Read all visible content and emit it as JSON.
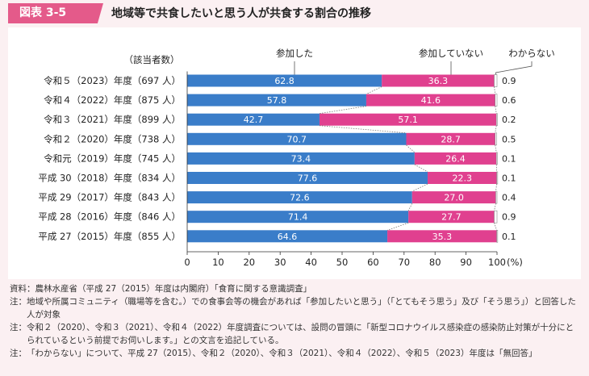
{
  "header": {
    "figure_label": "図表 3-5",
    "title": "地域等で共食したいと思う人が共食する割合の推移"
  },
  "chart_data": {
    "type": "bar",
    "stacked": true,
    "orientation": "horizontal",
    "title": "地域等で共食したいと思う人が共食する割合の推移",
    "count_header": "（該当者数）",
    "xlim": [
      0,
      100
    ],
    "ticks": [
      "0",
      "10",
      "20",
      "30",
      "40",
      "50",
      "60",
      "70",
      "80",
      "90",
      "100"
    ],
    "xunit": "(%)",
    "categories": [
      "令和５（2023）年度（697 人）",
      "令和４（2022）年度（875 人）",
      "令和３（2021）年度（899 人）",
      "令和２（2020）年度（738 人）",
      "令和元（2019）年度（745 人）",
      "平成 30（2018）年度（834 人）",
      "平成 29（2017）年度（843 人）",
      "平成 28（2016）年度（846 人）",
      "平成 27（2015）年度（855 人）"
    ],
    "series": [
      {
        "name": "参加した",
        "color": "#3a7dc9",
        "values": [
          62.8,
          57.8,
          42.7,
          70.7,
          73.4,
          77.6,
          72.6,
          71.4,
          64.6
        ]
      },
      {
        "name": "参加していない",
        "color": "#e0408f",
        "values": [
          36.3,
          41.6,
          57.1,
          28.7,
          26.4,
          22.3,
          27.0,
          27.7,
          35.3
        ]
      },
      {
        "name": "わからない",
        "color": "#ffffff",
        "values": [
          0.9,
          0.6,
          0.2,
          0.5,
          0.1,
          0.1,
          0.4,
          0.9,
          0.1
        ]
      }
    ],
    "value_labels": [
      [
        "62.8",
        "36.3",
        "0.9"
      ],
      [
        "57.8",
        "41.6",
        "0.6"
      ],
      [
        "42.7",
        "57.1",
        "0.2"
      ],
      [
        "70.7",
        "28.7",
        "0.5"
      ],
      [
        "73.4",
        "26.4",
        "0.1"
      ],
      [
        "77.6",
        "22.3",
        "0.1"
      ],
      [
        "72.6",
        "27.0",
        "0.4"
      ],
      [
        "71.4",
        "27.7",
        "0.9"
      ],
      [
        "64.6",
        "35.3",
        "0.1"
      ]
    ]
  },
  "notes": [
    {
      "prefix": "資料：",
      "text": "農林水産省（平成 27（2015）年度は内閣府）「食育に関する意識調査」"
    },
    {
      "prefix": "注：",
      "text": "地域や所属コミュニティ（職場等を含む。）での食事会等の機会があれば「参加したいと思う」（「とてもそう思う」及び「そう思う」）と回答した人が対象"
    },
    {
      "prefix": "注：",
      "text": "令和２（2020）、令和３（2021）、令和４（2022）年度調査については、設問の冒頭に「新型コロナウイルス感染症の感染防止対策が十分にとられているという前提でお伺いします。」との文言を追記している。"
    },
    {
      "prefix": "注：",
      "text": "「わからない」について、平成 27（2015）、令和２（2020）、令和３（2021）、令和４（2022）、令和５（2023）年度は「無回答」"
    }
  ]
}
